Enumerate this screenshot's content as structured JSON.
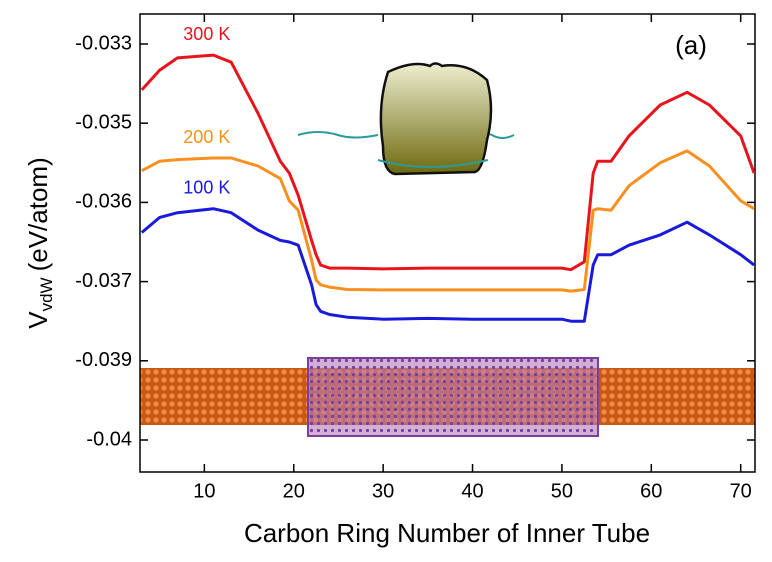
{
  "chart_data": {
    "type": "line",
    "xlabel": "Carbon Ring Number of Inner Tube",
    "ylabel": {
      "main": "V",
      "sub": "vdW",
      "rest": "(eV/atom)"
    },
    "annotation": "(a)",
    "x": [
      3,
      5,
      7,
      11,
      13,
      16,
      18.5,
      19.5,
      20.5,
      22,
      22.5,
      23,
      24,
      26,
      30,
      35,
      40,
      45,
      50,
      51,
      52.5,
      53.5,
      54,
      55.5,
      57.5,
      61,
      64,
      66.5,
      70,
      71.5
    ],
    "series": [
      {
        "name": "300 K",
        "color": "#e8141b",
        "values": [
          -0.03416,
          -0.03366,
          -0.03335,
          -0.03328,
          -0.03346,
          -0.03475,
          -0.03548,
          -0.03563,
          -0.03591,
          -0.03648,
          -0.03666,
          -0.03679,
          -0.03683,
          -0.03683,
          -0.03684,
          -0.03683,
          -0.03683,
          -0.03683,
          -0.03683,
          -0.03685,
          -0.03675,
          -0.03563,
          -0.03548,
          -0.03548,
          -0.03516,
          -0.03454,
          -0.03422,
          -0.03454,
          -0.03516,
          -0.03563
        ]
      },
      {
        "name": "200 K",
        "color": "#f7901e",
        "values": [
          -0.0356,
          -0.03548,
          -0.03546,
          -0.03544,
          -0.03544,
          -0.03554,
          -0.0357,
          -0.03598,
          -0.0361,
          -0.03673,
          -0.03698,
          -0.03708,
          -0.03714,
          -0.0372,
          -0.03721,
          -0.03721,
          -0.03721,
          -0.03721,
          -0.03721,
          -0.03724,
          -0.0372,
          -0.0361,
          -0.03608,
          -0.0361,
          -0.03579,
          -0.0355,
          -0.03535,
          -0.03554,
          -0.03598,
          -0.03608
        ]
      },
      {
        "name": "100 K",
        "color": "#1a1adb",
        "values": [
          -0.03638,
          -0.03619,
          -0.03613,
          -0.03608,
          -0.03613,
          -0.03635,
          -0.03648,
          -0.0365,
          -0.03654,
          -0.03708,
          -0.03758,
          -0.03775,
          -0.03783,
          -0.0379,
          -0.03795,
          -0.03793,
          -0.03795,
          -0.03795,
          -0.03795,
          -0.038,
          -0.038,
          -0.03679,
          -0.03666,
          -0.03666,
          -0.03654,
          -0.03641,
          -0.03625,
          -0.03641,
          -0.03666,
          -0.03679
        ]
      }
    ],
    "xlim": [
      2.8,
      71.6
    ],
    "xticks": [
      10,
      20,
      30,
      40,
      50,
      60,
      70
    ],
    "ylim": [
      -0.0404,
      -0.03224
    ],
    "yticks": [
      -0.033,
      -0.035,
      -0.036,
      -0.037,
      -0.039,
      -0.04
    ],
    "grid": false
  }
}
